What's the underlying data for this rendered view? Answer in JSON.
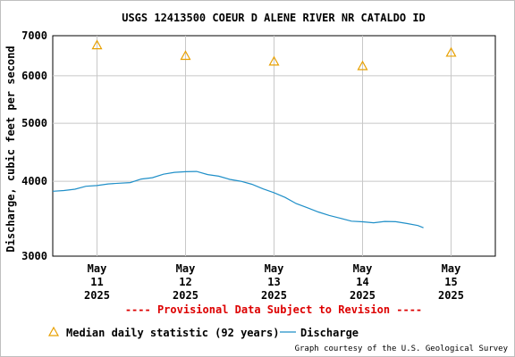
{
  "chart_data": {
    "type": "line",
    "title": "USGS 12413500 COEUR D ALENE RIVER NR CATALDO ID",
    "ylabel": "Discharge, cubic feet per second",
    "xlabel": "",
    "y_scale": "log",
    "ylim": [
      3000,
      7000
    ],
    "yticks": [
      3000,
      4000,
      5000,
      6000,
      7000
    ],
    "xlim": [
      "2025-05-10T12:00",
      "2025-05-15T12:00"
    ],
    "xticks": [
      {
        "date": "2025-05-11T00:00",
        "lines": [
          "May",
          "11",
          "2025"
        ]
      },
      {
        "date": "2025-05-12T00:00",
        "lines": [
          "May",
          "12",
          "2025"
        ]
      },
      {
        "date": "2025-05-13T00:00",
        "lines": [
          "May",
          "13",
          "2025"
        ]
      },
      {
        "date": "2025-05-14T00:00",
        "lines": [
          "May",
          "14",
          "2025"
        ]
      },
      {
        "date": "2025-05-15T00:00",
        "lines": [
          "May",
          "15",
          "2025"
        ]
      }
    ],
    "grid": true,
    "legend_position": "bottom",
    "series": [
      {
        "name": "Median daily statistic (92 years)",
        "marker": "triangle",
        "color": "#e8a000",
        "points": [
          {
            "x": "2025-05-11T00:00",
            "y": 6750
          },
          {
            "x": "2025-05-12T00:00",
            "y": 6480
          },
          {
            "x": "2025-05-13T00:00",
            "y": 6340
          },
          {
            "x": "2025-05-14T00:00",
            "y": 6230
          },
          {
            "x": "2025-05-15T00:00",
            "y": 6560
          }
        ]
      },
      {
        "name": "Discharge",
        "line": true,
        "color": "#1f8fc8",
        "points": [
          {
            "x": "2025-05-10T12:00",
            "y": 3840
          },
          {
            "x": "2025-05-10T15:00",
            "y": 3860
          },
          {
            "x": "2025-05-10T18:00",
            "y": 3890
          },
          {
            "x": "2025-05-10T21:00",
            "y": 3920
          },
          {
            "x": "2025-05-11T00:00",
            "y": 3940
          },
          {
            "x": "2025-05-11T03:00",
            "y": 3950
          },
          {
            "x": "2025-05-11T06:00",
            "y": 3970
          },
          {
            "x": "2025-05-11T09:00",
            "y": 3990
          },
          {
            "x": "2025-05-11T12:00",
            "y": 4030
          },
          {
            "x": "2025-05-11T15:00",
            "y": 4060
          },
          {
            "x": "2025-05-11T18:00",
            "y": 4100
          },
          {
            "x": "2025-05-11T21:00",
            "y": 4140
          },
          {
            "x": "2025-05-12T00:00",
            "y": 4160
          },
          {
            "x": "2025-05-12T03:00",
            "y": 4150
          },
          {
            "x": "2025-05-12T06:00",
            "y": 4110
          },
          {
            "x": "2025-05-12T09:00",
            "y": 4070
          },
          {
            "x": "2025-05-12T12:00",
            "y": 4030
          },
          {
            "x": "2025-05-12T15:00",
            "y": 4010
          },
          {
            "x": "2025-05-12T18:00",
            "y": 3950
          },
          {
            "x": "2025-05-12T21:00",
            "y": 3890
          },
          {
            "x": "2025-05-13T00:00",
            "y": 3820
          },
          {
            "x": "2025-05-13T03:00",
            "y": 3760
          },
          {
            "x": "2025-05-13T06:00",
            "y": 3680
          },
          {
            "x": "2025-05-13T09:00",
            "y": 3610
          },
          {
            "x": "2025-05-13T12:00",
            "y": 3560
          },
          {
            "x": "2025-05-13T15:00",
            "y": 3500
          },
          {
            "x": "2025-05-13T18:00",
            "y": 3470
          },
          {
            "x": "2025-05-13T21:00",
            "y": 3440
          },
          {
            "x": "2025-05-14T00:00",
            "y": 3420
          },
          {
            "x": "2025-05-14T03:00",
            "y": 3415
          },
          {
            "x": "2025-05-14T06:00",
            "y": 3420
          },
          {
            "x": "2025-05-14T09:00",
            "y": 3425
          },
          {
            "x": "2025-05-14T12:00",
            "y": 3410
          },
          {
            "x": "2025-05-14T15:00",
            "y": 3370
          },
          {
            "x": "2025-05-14T16:30",
            "y": 3350
          }
        ]
      }
    ],
    "annotations": {
      "provisional": "---- Provisional Data Subject to Revision ----",
      "credit": "Graph courtesy of the U.S. Geological Survey"
    },
    "colors": {
      "grid": "#c8c8c8",
      "axis": "#000000",
      "provisional": "#dd0000"
    }
  }
}
